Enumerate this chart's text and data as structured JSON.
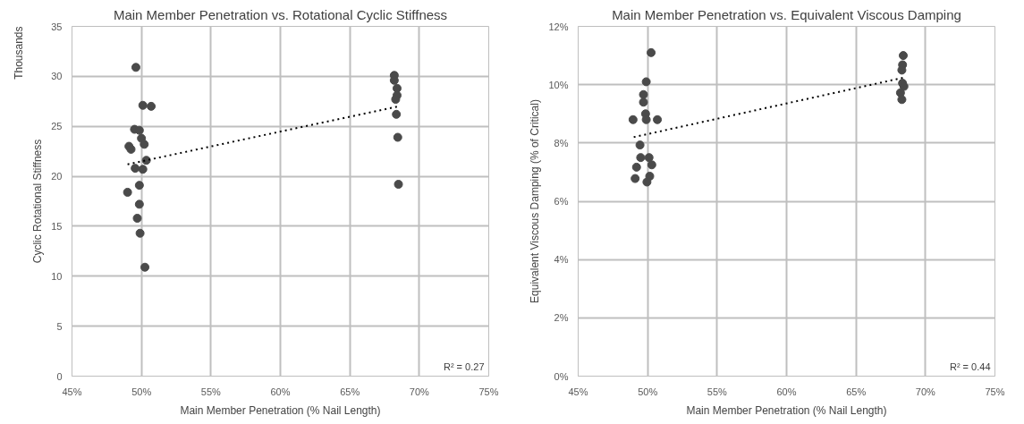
{
  "chart_data": [
    {
      "type": "scatter",
      "title": "Main Member Penetration vs. Rotational Cyclic Stiffness",
      "xlabel": "Main Member Penetration (% Nail Length)",
      "ylabel": "Cyclic Rotational Stiffness",
      "annotations": [
        "Thousands",
        "R² = 0.27"
      ],
      "xlim": [
        45,
        75
      ],
      "xticks": [
        {
          "value": 45,
          "label": "45%"
        },
        {
          "value": 50,
          "label": "50%"
        },
        {
          "value": 55,
          "label": "55%"
        },
        {
          "value": 60,
          "label": "60%"
        },
        {
          "value": 65,
          "label": "65%"
        },
        {
          "value": 70,
          "label": "70%"
        },
        {
          "value": 75,
          "label": "75%"
        }
      ],
      "ylim": [
        0,
        35
      ],
      "yticks": [
        0,
        5,
        10,
        15,
        20,
        25,
        30,
        35
      ],
      "grid": true,
      "series": [
        {
          "marker": "circle",
          "color": "#4a4a4a",
          "x": [
            49.6,
            50.1,
            50.7,
            49.5,
            49.85,
            50.0,
            50.2,
            49.1,
            49.25,
            50.35,
            49.55,
            50.1,
            49.85,
            49.0,
            49.85,
            49.7,
            49.9,
            50.25,
            68.2,
            68.2,
            68.4,
            68.4,
            68.3,
            68.35,
            68.45,
            68.5
          ],
          "values": [
            30.9,
            27.1,
            27.0,
            24.7,
            24.6,
            23.8,
            23.2,
            23.0,
            22.7,
            21.6,
            20.8,
            20.7,
            19.1,
            18.4,
            17.2,
            15.8,
            14.3,
            10.9,
            30.1,
            29.6,
            28.8,
            28.1,
            27.7,
            26.2,
            23.9,
            19.2
          ]
        },
        {
          "type": "line",
          "marker": "none",
          "color": "#000000",
          "line_style": "dotted",
          "x": [
            49.0,
            68.5
          ],
          "values": [
            21.2,
            27.0
          ]
        }
      ]
    },
    {
      "type": "scatter",
      "title": "Main Member Penetration vs. Equivalent Viscous Damping",
      "xlabel": "Main Member Penetration (% Nail Length)",
      "ylabel": "Equivalent Viscous Damping (% of Critical)",
      "annotations": [
        "R² = 0.44"
      ],
      "xlim": [
        45,
        75
      ],
      "xticks": [
        {
          "value": 45,
          "label": "45%"
        },
        {
          "value": 50,
          "label": "50%"
        },
        {
          "value": 55,
          "label": "55%"
        },
        {
          "value": 60,
          "label": "60%"
        },
        {
          "value": 65,
          "label": "65%"
        },
        {
          "value": 70,
          "label": "70%"
        },
        {
          "value": 75,
          "label": "75%"
        }
      ],
      "ylim": [
        0,
        12
      ],
      "yticks": [
        {
          "value": 0,
          "label": "0%"
        },
        {
          "value": 2,
          "label": "2%"
        },
        {
          "value": 4,
          "label": "4%"
        },
        {
          "value": 6,
          "label": "6%"
        },
        {
          "value": 8,
          "label": "8%"
        },
        {
          "value": 10,
          "label": "10%"
        },
        {
          "value": 12,
          "label": "12%"
        }
      ],
      "grid": true,
      "series": [
        {
          "marker": "circle",
          "color": "#4a4a4a",
          "x": [
            50.25,
            49.9,
            49.7,
            49.7,
            49.85,
            49.9,
            48.95,
            50.7,
            49.45,
            49.5,
            50.1,
            50.3,
            49.2,
            50.15,
            49.1,
            49.95,
            68.4,
            68.35,
            68.3,
            68.35,
            68.45,
            68.2,
            68.3
          ],
          "values": [
            11.1,
            10.1,
            9.66,
            9.4,
            9.0,
            8.8,
            8.8,
            8.8,
            7.93,
            7.5,
            7.5,
            7.25,
            7.17,
            6.86,
            6.78,
            6.66,
            11.0,
            10.68,
            10.5,
            10.05,
            9.94,
            9.72,
            9.49
          ]
        },
        {
          "type": "line",
          "marker": "none",
          "color": "#000000",
          "line_style": "dotted",
          "x": [
            49.0,
            68.5
          ],
          "values": [
            8.2,
            10.25
          ]
        }
      ]
    }
  ]
}
